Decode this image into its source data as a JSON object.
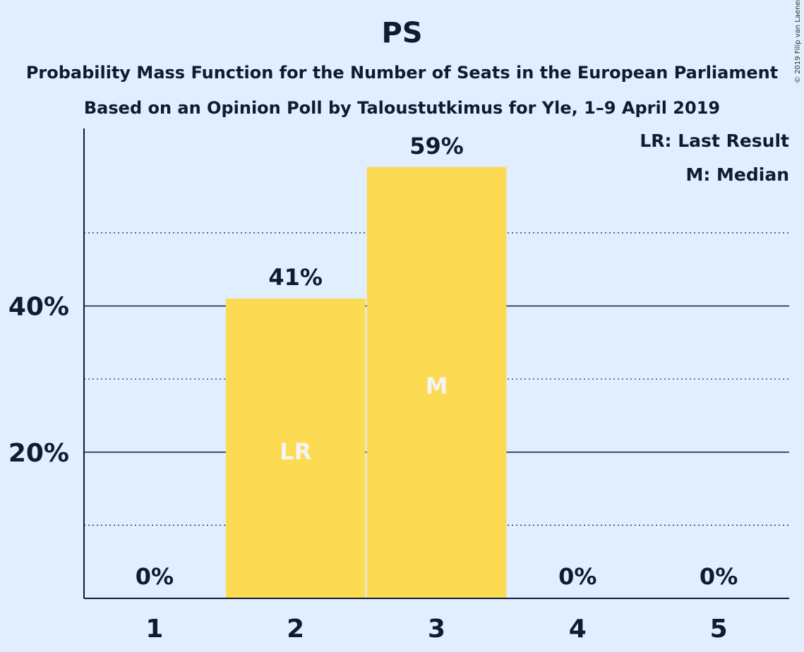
{
  "chart_data": {
    "type": "bar",
    "title": "PS",
    "subtitle": [
      "Probability Mass Function for the Number of Seats in the European Parliament",
      "Based on an Opinion Poll by Taloustutkimus for Yle, 1–9 April 2019"
    ],
    "categories": [
      "1",
      "2",
      "3",
      "4",
      "5"
    ],
    "values": [
      0,
      41,
      59,
      0,
      0
    ],
    "value_labels": [
      "0%",
      "41%",
      "59%",
      "0%",
      "0%"
    ],
    "bar_markers": [
      "",
      "LR",
      "M",
      "",
      ""
    ],
    "ylim": [
      0,
      64.5
    ],
    "y_ticks": [
      20,
      40
    ],
    "y_tick_labels": [
      "20%",
      "40%"
    ],
    "y_minor_gridlines": [
      10,
      30,
      50
    ],
    "grid": true,
    "legend": [
      "LR: Last Result",
      "M: Median"
    ],
    "legend_position": "top-right",
    "colors": {
      "bar": "#fcdb52",
      "background": "#e0eeff",
      "text": "#0f1a33",
      "marker_text": "#f4f4f4"
    }
  },
  "copyright": "© 2019 Filip van Laenen"
}
